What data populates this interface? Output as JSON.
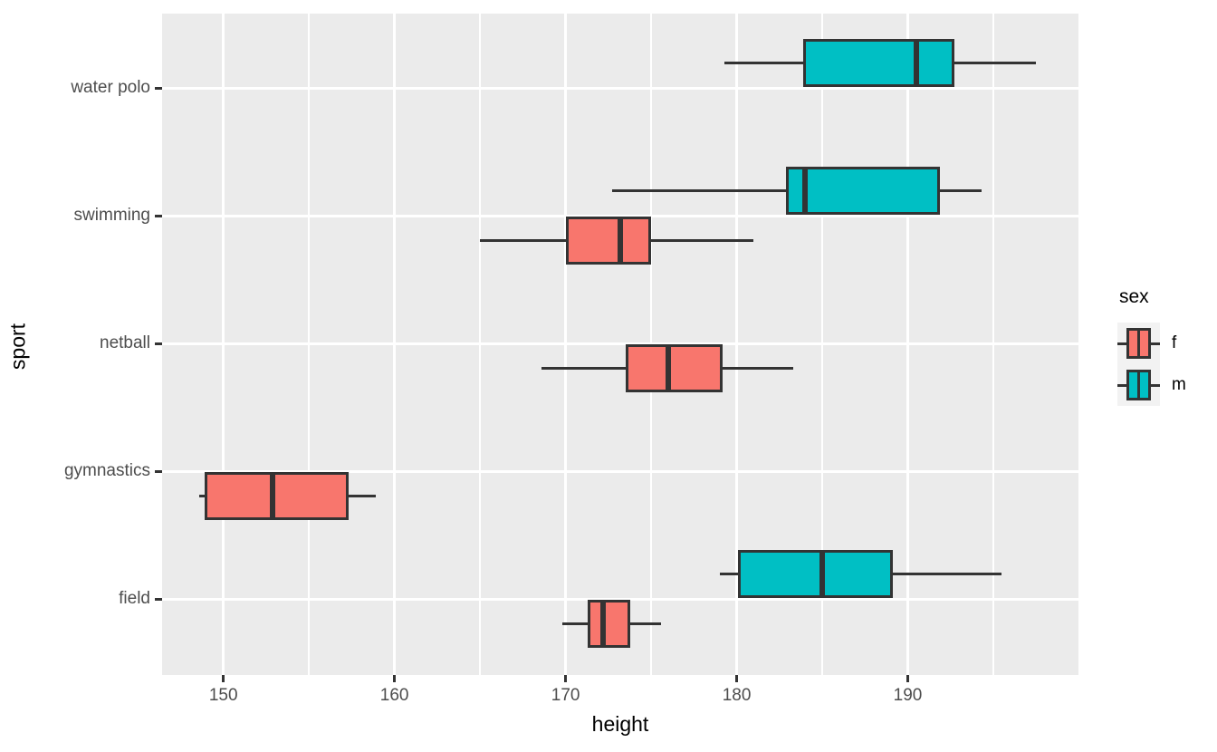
{
  "figure": {
    "x_axis_title": "height",
    "y_axis_title": "sport",
    "legend": {
      "title": "sex",
      "entries": [
        {
          "label": "f",
          "color": "#F8766D"
        },
        {
          "label": "m",
          "color": "#00BFC4"
        }
      ]
    },
    "colors": {
      "panel_background": "#EBEBEB",
      "gridline": "#FFFFFF",
      "box_outline": "#333333",
      "axis_text": "#4D4D4D",
      "legend_key_background": "#F2F2F2",
      "fill_f": "#F8766D",
      "fill_m": "#00BFC4"
    }
  },
  "chart_data": {
    "type": "boxplot",
    "orientation": "horizontal",
    "title": "",
    "xlabel": "height",
    "ylabel": "sport",
    "xlim": [
      146.4,
      200.0
    ],
    "x_major_ticks": [
      150,
      160,
      170,
      180,
      190
    ],
    "x_minor_gridlines": [
      155,
      165,
      175,
      185,
      195
    ],
    "categories": [
      "water polo",
      "swimming",
      "netball",
      "gymnastics",
      "field"
    ],
    "groups": [
      "f",
      "m"
    ],
    "grid": true,
    "legend_position": "right",
    "boxes": [
      {
        "sport": "water polo",
        "sex": "m",
        "min": 179.3,
        "q1": 183.9,
        "median": 190.5,
        "q3": 192.7,
        "max": 197.5
      },
      {
        "sport": "swimming",
        "sex": "m",
        "min": 172.7,
        "q1": 182.9,
        "median": 184.0,
        "q3": 191.9,
        "max": 194.3
      },
      {
        "sport": "swimming",
        "sex": "f",
        "min": 165.0,
        "q1": 170.0,
        "median": 173.2,
        "q3": 175.0,
        "max": 181.0
      },
      {
        "sport": "netball",
        "sex": "f",
        "min": 168.6,
        "q1": 173.5,
        "median": 176.0,
        "q3": 179.2,
        "max": 183.3
      },
      {
        "sport": "gymnastics",
        "sex": "f",
        "min": 148.6,
        "q1": 148.9,
        "median": 152.9,
        "q3": 157.3,
        "max": 158.9
      },
      {
        "sport": "field",
        "sex": "m",
        "min": 179.0,
        "q1": 180.1,
        "median": 185.0,
        "q3": 189.1,
        "max": 195.5
      },
      {
        "sport": "field",
        "sex": "f",
        "min": 169.8,
        "q1": 171.3,
        "median": 172.2,
        "q3": 173.8,
        "max": 175.6
      }
    ]
  }
}
